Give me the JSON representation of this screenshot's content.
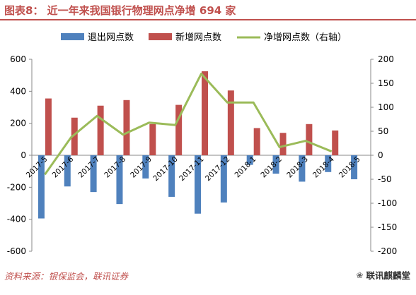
{
  "title": "图表8：  近一年来我国银行物理网点净增 694 家",
  "source": "资料来源：银保监会，联讯证券",
  "watermark": "联讯麒麟堂",
  "colors": {
    "exit_bar": "#4f81bd",
    "new_bar": "#c0504d",
    "net_line": "#9bbb59",
    "title": "#c0504d"
  },
  "chart_data": {
    "type": "bar",
    "categories": [
      "2017-5",
      "2017-6",
      "2017-7",
      "2017-8",
      "2017-9",
      "2017-10",
      "2017-11",
      "2017-12",
      "2018-1",
      "2018-2",
      "2018-3",
      "2018-4",
      "2018-5"
    ],
    "series": [
      {
        "name": "退出网点数",
        "type": "bar",
        "axis": "left",
        "values": [
          -395,
          -195,
          -230,
          -305,
          -145,
          -260,
          -365,
          -295,
          -60,
          -115,
          -165,
          -105,
          -150
        ]
      },
      {
        "name": "新增网点数",
        "type": "bar",
        "axis": "left",
        "values": [
          355,
          235,
          310,
          345,
          195,
          315,
          525,
          405,
          170,
          140,
          195,
          155,
          0
        ]
      },
      {
        "name": "净增网点数（右轴）",
        "type": "line",
        "axis": "right",
        "values": [
          -40,
          37,
          82,
          43,
          68,
          63,
          170,
          110,
          110,
          17,
          30,
          8,
          null
        ]
      }
    ],
    "left_axis": {
      "min": -600,
      "max": 600,
      "step": 200,
      "ticks": [
        "-600",
        "-400",
        "-200",
        "0",
        "200",
        "400",
        "600"
      ]
    },
    "right_axis": {
      "min": -200,
      "max": 200,
      "step": 50,
      "ticks": [
        "-200",
        "-150",
        "-100",
        "-50",
        "0",
        "50",
        "100",
        "150",
        "200"
      ]
    },
    "legend_position": "top",
    "grid": false
  }
}
